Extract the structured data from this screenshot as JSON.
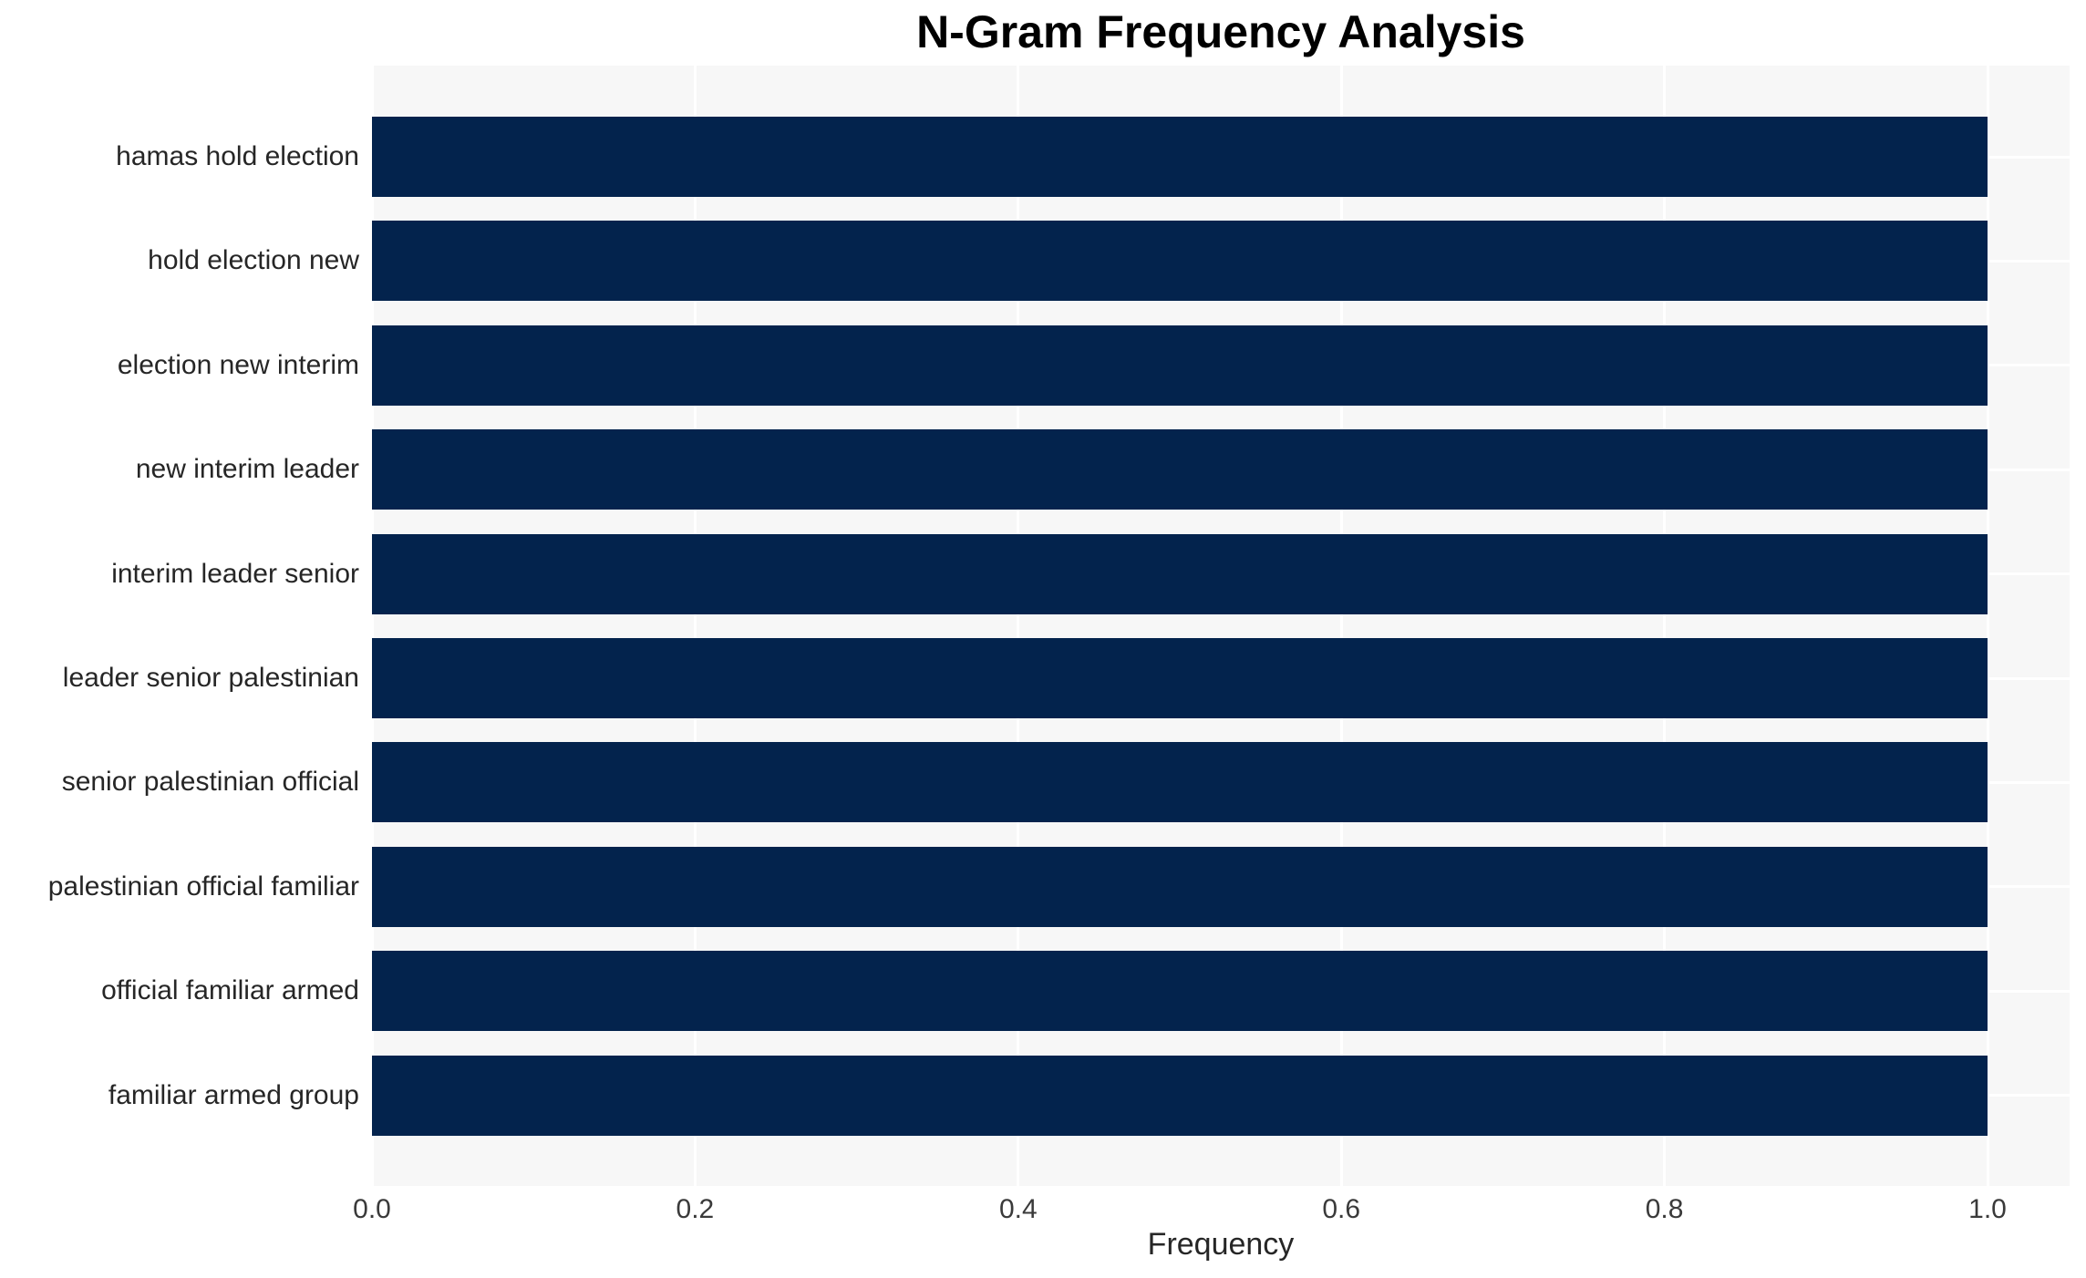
{
  "title": "N-Gram Frequency Analysis",
  "chart_data": {
    "type": "bar",
    "orientation": "horizontal",
    "title": "N-Gram Frequency Analysis",
    "xlabel": "Frequency",
    "ylabel": "",
    "categories": [
      "hamas hold election",
      "hold election new",
      "election new interim",
      "new interim leader",
      "interim leader senior",
      "leader senior palestinian",
      "senior palestinian official",
      "palestinian official familiar",
      "official familiar armed",
      "familiar armed group"
    ],
    "values": [
      1.0,
      1.0,
      1.0,
      1.0,
      1.0,
      1.0,
      1.0,
      1.0,
      1.0,
      1.0
    ],
    "xlim": [
      0.0,
      1.05
    ],
    "xticks": [
      0.0,
      0.2,
      0.4,
      0.6,
      0.8,
      1.0
    ],
    "xtick_labels": [
      "0.0",
      "0.2",
      "0.4",
      "0.6",
      "0.8",
      "1.0"
    ],
    "grid": true,
    "legend": false,
    "colors": {
      "bar": "#03234d",
      "plot_background": "#f7f7f7",
      "gridline": "#ffffff",
      "text": "#262626"
    }
  }
}
